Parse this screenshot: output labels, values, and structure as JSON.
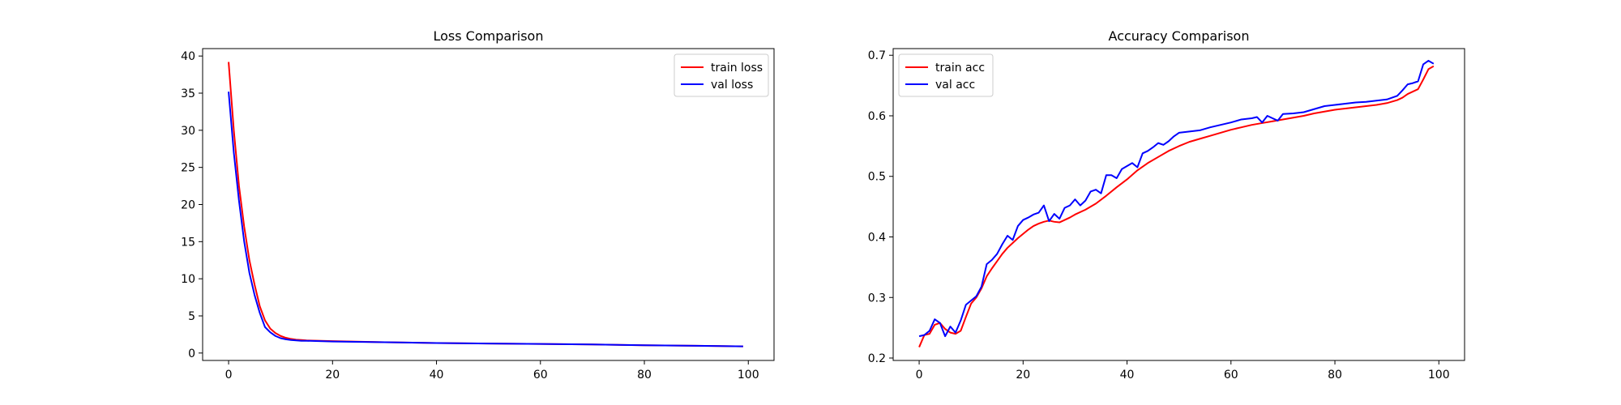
{
  "chart_data": [
    {
      "type": "line",
      "title": "Loss Comparison",
      "xlabel": "",
      "ylabel": "",
      "xlim": [
        -5,
        104.95
      ],
      "ylim": [
        -1.0,
        41.0
      ],
      "xticks": [
        0,
        20,
        40,
        60,
        80,
        100
      ],
      "yticks": [
        0,
        5,
        10,
        15,
        20,
        25,
        30,
        35,
        40
      ],
      "grid": false,
      "legend_position": "upper right",
      "series": [
        {
          "name": "train loss",
          "color": "#ff0000",
          "x": [
            0,
            1,
            2,
            3,
            4,
            5,
            6,
            7,
            8,
            9,
            10,
            11,
            12,
            13,
            14,
            15,
            20,
            30,
            40,
            50,
            60,
            70,
            80,
            90,
            99
          ],
          "y": [
            39.2,
            30.0,
            22.5,
            17.0,
            12.5,
            9.2,
            6.3,
            4.4,
            3.3,
            2.7,
            2.3,
            2.05,
            1.9,
            1.8,
            1.75,
            1.7,
            1.6,
            1.45,
            1.35,
            1.28,
            1.22,
            1.15,
            1.05,
            0.98,
            0.9
          ]
        },
        {
          "name": "val loss",
          "color": "#0000ff",
          "x": [
            0,
            1,
            2,
            3,
            4,
            5,
            6,
            7,
            8,
            9,
            10,
            11,
            12,
            13,
            14,
            15,
            20,
            30,
            40,
            50,
            60,
            70,
            80,
            90,
            99
          ],
          "y": [
            35.2,
            27.0,
            20.5,
            15.0,
            10.8,
            7.8,
            5.4,
            3.5,
            2.8,
            2.3,
            2.0,
            1.85,
            1.75,
            1.7,
            1.65,
            1.65,
            1.55,
            1.45,
            1.35,
            1.28,
            1.22,
            1.15,
            1.05,
            0.98,
            0.9
          ]
        }
      ]
    },
    {
      "type": "line",
      "title": "Accuracy Comparison",
      "xlabel": "",
      "ylabel": "",
      "xlim": [
        -5,
        104.95
      ],
      "ylim": [
        0.196,
        0.711
      ],
      "xticks": [
        0,
        20,
        40,
        60,
        80,
        100
      ],
      "yticks": [
        0.2,
        0.3,
        0.4,
        0.5,
        0.6,
        0.7
      ],
      "grid": false,
      "legend_position": "upper left",
      "series": [
        {
          "name": "train acc",
          "color": "#ff0000",
          "x": [
            0,
            1,
            2,
            3,
            4,
            5,
            6,
            7,
            8,
            9,
            10,
            11,
            12,
            13,
            14,
            15,
            16,
            17,
            18,
            19,
            20,
            21,
            22,
            23,
            24,
            25,
            26,
            27,
            28,
            29,
            30,
            32,
            34,
            36,
            38,
            40,
            42,
            44,
            46,
            48,
            50,
            52,
            54,
            56,
            58,
            60,
            62,
            64,
            66,
            68,
            70,
            72,
            74,
            76,
            78,
            80,
            82,
            84,
            86,
            88,
            90,
            92,
            93,
            94,
            95,
            96,
            97,
            98,
            99
          ],
          "y": [
            0.218,
            0.238,
            0.24,
            0.255,
            0.258,
            0.248,
            0.242,
            0.24,
            0.245,
            0.268,
            0.29,
            0.3,
            0.315,
            0.335,
            0.348,
            0.36,
            0.372,
            0.382,
            0.39,
            0.398,
            0.405,
            0.412,
            0.418,
            0.422,
            0.425,
            0.427,
            0.425,
            0.424,
            0.428,
            0.432,
            0.437,
            0.445,
            0.455,
            0.468,
            0.482,
            0.495,
            0.51,
            0.522,
            0.532,
            0.542,
            0.55,
            0.557,
            0.562,
            0.567,
            0.572,
            0.577,
            0.581,
            0.585,
            0.588,
            0.591,
            0.594,
            0.597,
            0.6,
            0.604,
            0.607,
            0.61,
            0.612,
            0.614,
            0.616,
            0.618,
            0.621,
            0.626,
            0.63,
            0.636,
            0.64,
            0.644,
            0.66,
            0.677,
            0.682
          ]
        },
        {
          "name": "val acc",
          "color": "#0000ff",
          "x": [
            0,
            1,
            2,
            3,
            4,
            5,
            6,
            7,
            8,
            9,
            10,
            11,
            12,
            13,
            14,
            15,
            16,
            17,
            18,
            19,
            20,
            21,
            22,
            23,
            24,
            25,
            26,
            27,
            28,
            29,
            30,
            31,
            32,
            33,
            34,
            35,
            36,
            37,
            38,
            39,
            40,
            41,
            42,
            43,
            44,
            45,
            46,
            47,
            48,
            49,
            50,
            52,
            54,
            56,
            58,
            60,
            62,
            64,
            65,
            66,
            67,
            68,
            69,
            70,
            72,
            74,
            76,
            78,
            80,
            82,
            84,
            86,
            88,
            90,
            92,
            93,
            94,
            95,
            96,
            97,
            98,
            99
          ],
          "y": [
            0.236,
            0.238,
            0.245,
            0.264,
            0.258,
            0.236,
            0.252,
            0.242,
            0.262,
            0.288,
            0.295,
            0.302,
            0.318,
            0.355,
            0.362,
            0.372,
            0.388,
            0.402,
            0.395,
            0.418,
            0.428,
            0.432,
            0.437,
            0.44,
            0.452,
            0.426,
            0.438,
            0.43,
            0.448,
            0.452,
            0.462,
            0.452,
            0.46,
            0.475,
            0.478,
            0.472,
            0.502,
            0.502,
            0.497,
            0.512,
            0.517,
            0.522,
            0.515,
            0.538,
            0.542,
            0.548,
            0.555,
            0.552,
            0.558,
            0.566,
            0.572,
            0.574,
            0.576,
            0.581,
            0.585,
            0.589,
            0.594,
            0.596,
            0.598,
            0.589,
            0.6,
            0.596,
            0.592,
            0.603,
            0.604,
            0.606,
            0.611,
            0.616,
            0.618,
            0.62,
            0.622,
            0.623,
            0.625,
            0.627,
            0.633,
            0.642,
            0.652,
            0.654,
            0.657,
            0.685,
            0.691,
            0.686
          ]
        }
      ]
    }
  ]
}
